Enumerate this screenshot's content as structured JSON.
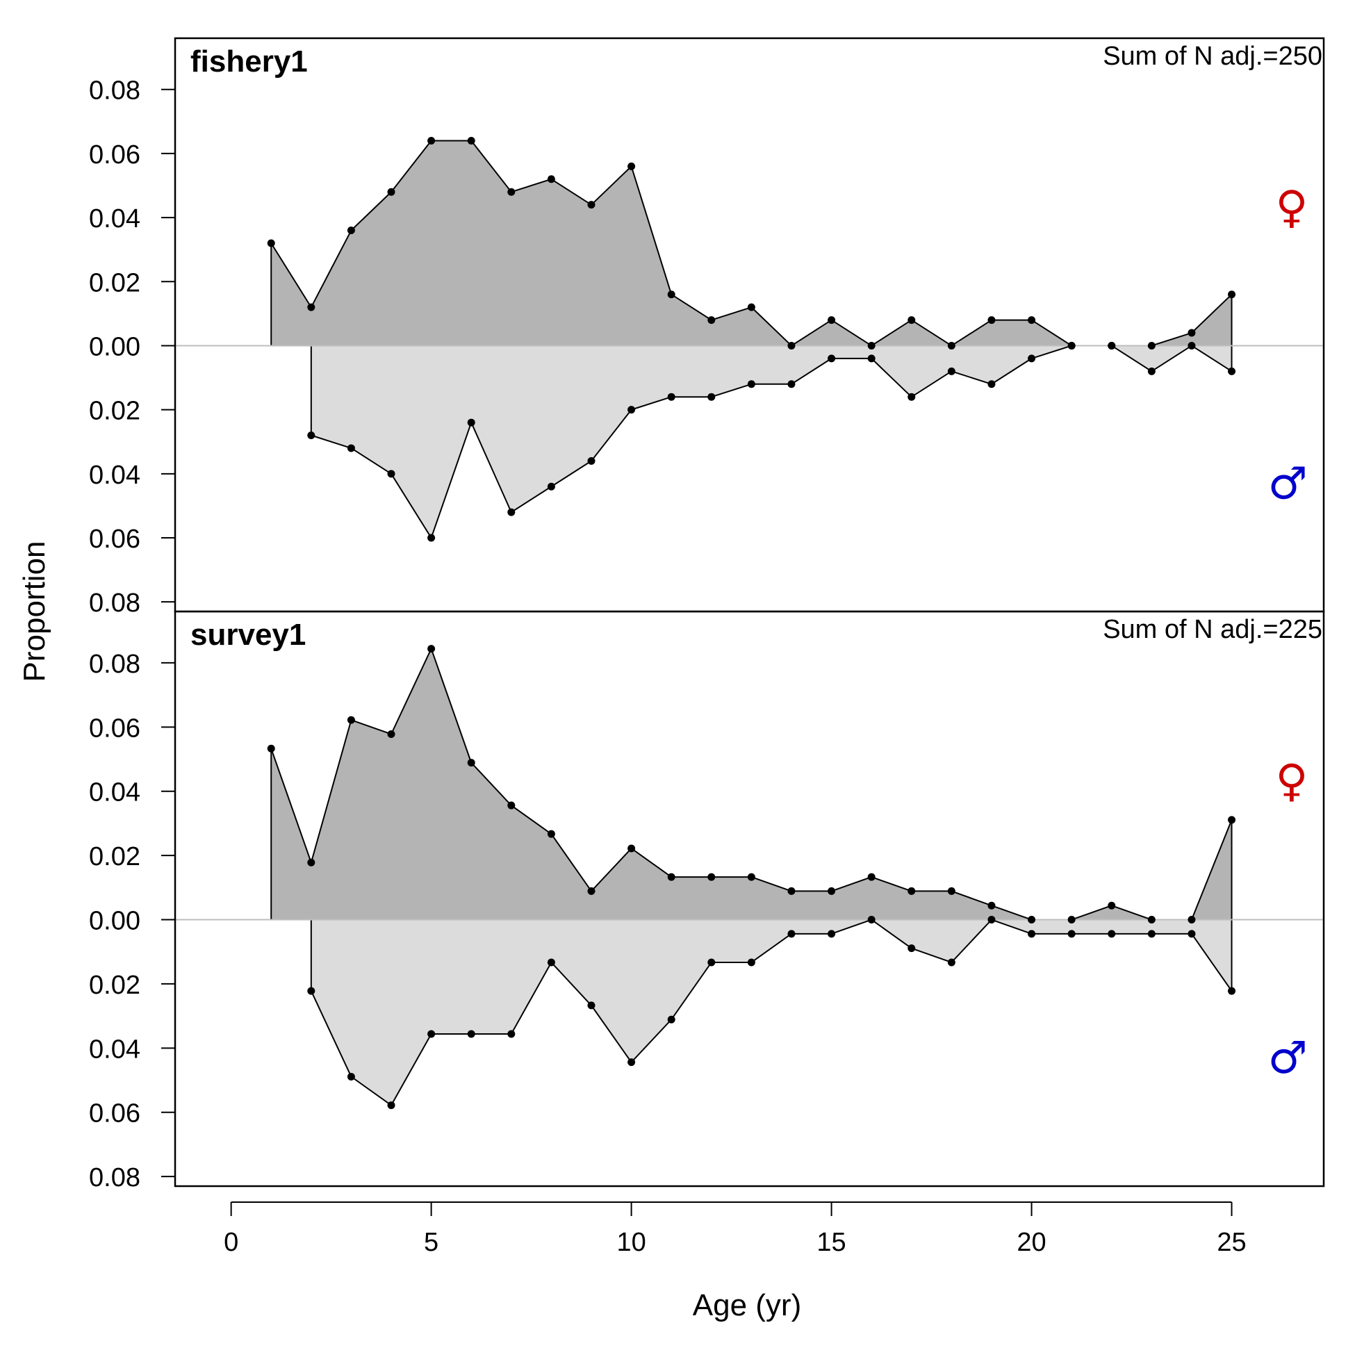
{
  "chart_data": {
    "type": "area",
    "xlabel": "Age (yr)",
    "ylabel": "Proportion",
    "x_ticks": [
      0,
      5,
      10,
      15,
      20,
      25
    ],
    "xlim": [
      -1.4,
      27.3
    ],
    "y_ticks": [
      0.08,
      0.06,
      0.04,
      0.02,
      0.0,
      0.02,
      0.04,
      0.06,
      0.08
    ],
    "y_tick_labels": [
      "0.08",
      "0.06",
      "0.04",
      "0.02",
      "0.00",
      "0.02",
      "0.04",
      "0.06",
      "0.08"
    ],
    "ylim": [
      -0.083,
      0.096
    ],
    "colors": {
      "female_fill": "#b4b4b4",
      "male_fill": "#dcdcdc",
      "zero_line": "#bebebe",
      "female_symbol": "#cc0000",
      "male_symbol": "#0000cc"
    },
    "panels": [
      {
        "title": "fishery1",
        "annotation": "Sum of N adj.=250",
        "female_symbol": "♀",
        "male_symbol": "♂",
        "series": [
          {
            "name": "female",
            "x": [
              1,
              2,
              3,
              4,
              5,
              6,
              7,
              8,
              9,
              10,
              11,
              12,
              13,
              14,
              15,
              16,
              17,
              18,
              19,
              20,
              21,
              22,
              23,
              24,
              25
            ],
            "values": [
              0.032,
              0.012,
              0.036,
              0.048,
              0.064,
              0.064,
              0.048,
              0.052,
              0.044,
              0.056,
              0.016,
              0.008,
              0.012,
              0.0,
              0.008,
              0.0,
              0.008,
              0.0,
              0.008,
              0.008,
              0.0,
              0.0,
              0.0,
              0.004,
              0.016
            ]
          },
          {
            "name": "male",
            "x": [
              2,
              3,
              4,
              5,
              6,
              7,
              8,
              9,
              10,
              11,
              12,
              13,
              14,
              15,
              16,
              17,
              18,
              19,
              20,
              21,
              22,
              23,
              24,
              25
            ],
            "values": [
              0.028,
              0.032,
              0.04,
              0.06,
              0.024,
              0.052,
              0.044,
              0.036,
              0.02,
              0.016,
              0.016,
              0.012,
              0.012,
              0.004,
              0.004,
              0.016,
              0.008,
              0.012,
              0.004,
              0.0,
              0.0,
              0.008,
              0.0,
              0.008
            ]
          }
        ]
      },
      {
        "title": "survey1",
        "annotation": "Sum of N adj.=225",
        "female_symbol": "♀",
        "male_symbol": "♂",
        "series": [
          {
            "name": "female",
            "x": [
              1,
              2,
              3,
              4,
              5,
              6,
              7,
              8,
              9,
              10,
              11,
              12,
              13,
              14,
              15,
              16,
              17,
              18,
              19,
              20,
              21,
              22,
              23,
              24,
              25
            ],
            "values": [
              0.0533,
              0.0178,
              0.0622,
              0.0578,
              0.0844,
              0.0489,
              0.0356,
              0.0267,
              0.0089,
              0.0222,
              0.0133,
              0.0133,
              0.0133,
              0.0089,
              0.0089,
              0.0133,
              0.0089,
              0.0089,
              0.0044,
              0.0,
              0.0,
              0.0044,
              0.0,
              0.0,
              0.0311
            ]
          },
          {
            "name": "male",
            "x": [
              2,
              3,
              4,
              5,
              6,
              7,
              8,
              9,
              10,
              11,
              12,
              13,
              14,
              15,
              16,
              17,
              18,
              19,
              20,
              21,
              22,
              23,
              24,
              25
            ],
            "values": [
              0.0222,
              0.0489,
              0.0578,
              0.0356,
              0.0356,
              0.0356,
              0.0133,
              0.0267,
              0.0444,
              0.0311,
              0.0133,
              0.0133,
              0.0044,
              0.0044,
              0.0,
              0.0089,
              0.0133,
              0.0,
              0.0044,
              0.0044,
              0.0044,
              0.0044,
              0.0044,
              0.0222
            ]
          }
        ]
      }
    ]
  }
}
